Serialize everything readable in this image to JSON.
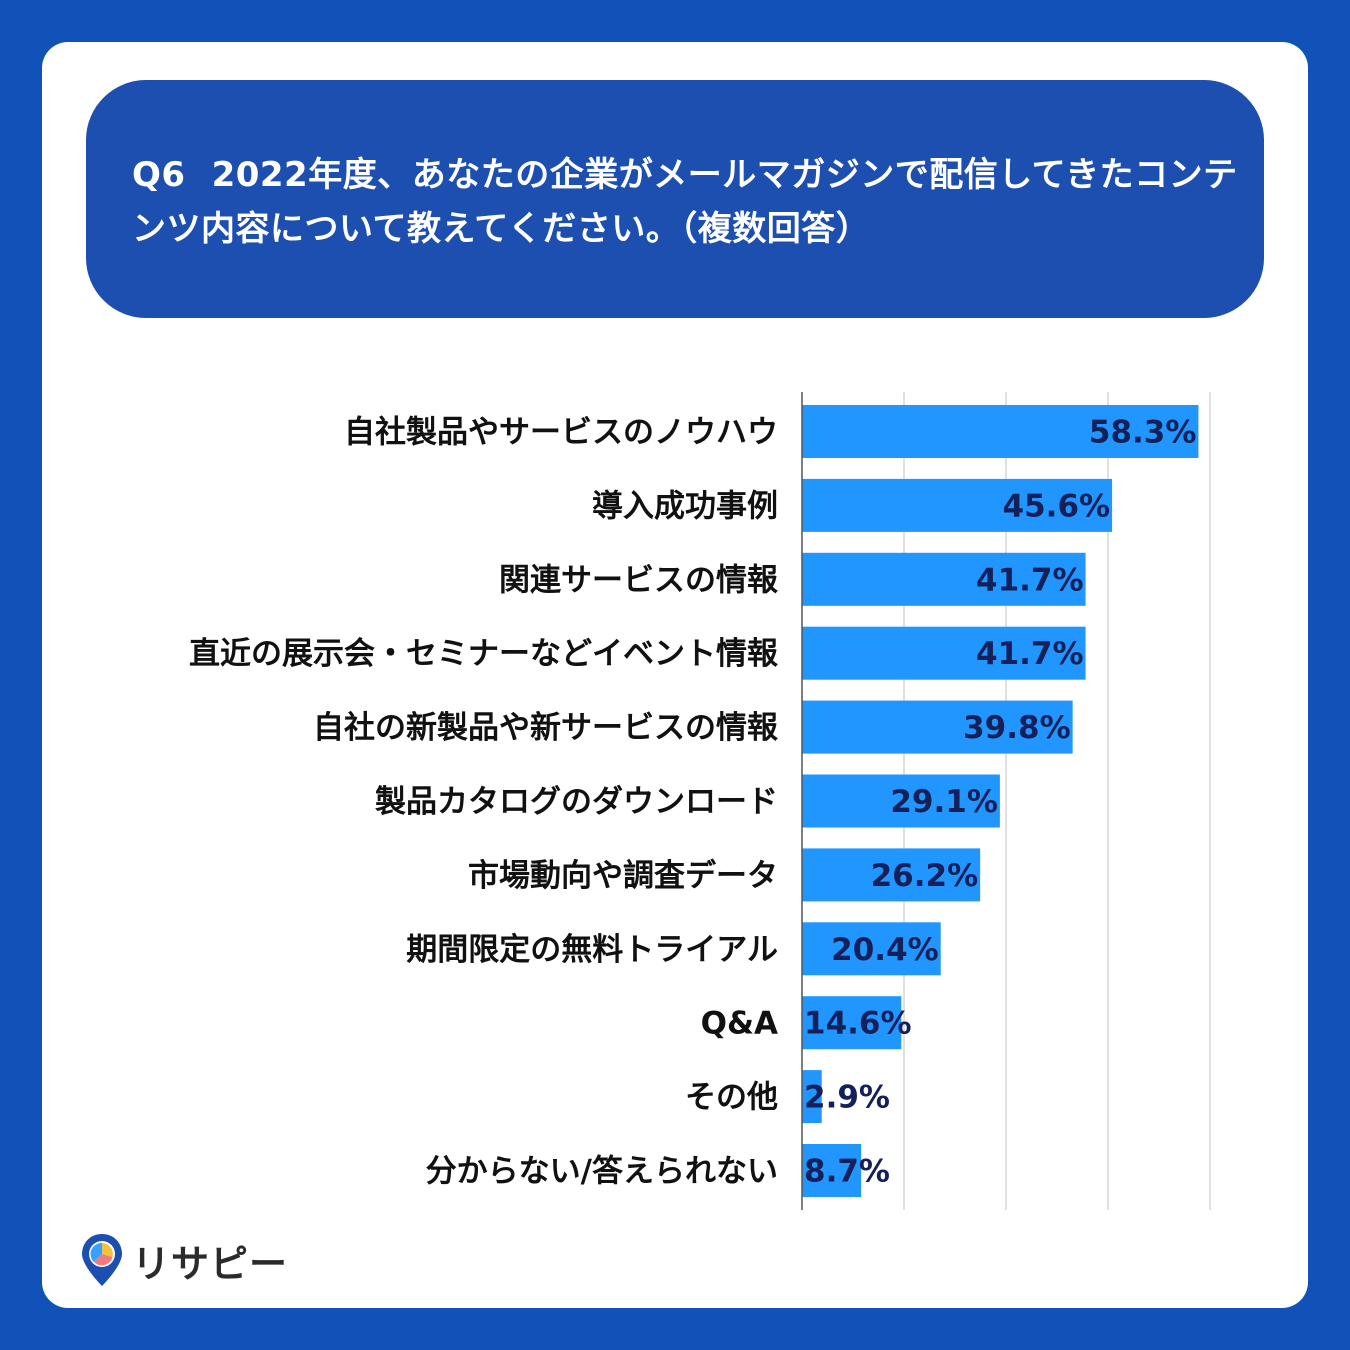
{
  "question": {
    "number": "Q6",
    "text": "2022年度、あなたの企業がメールマガジンで配信してきたコンテンツ内容について教えてください。（複数回答）"
  },
  "brand": {
    "name": "リサピー",
    "logo_icon": "map-pin-pie-icon"
  },
  "colors": {
    "background": "#1152b8",
    "banner": "#1d4fb1",
    "bar": "#2196ff",
    "value_text": "#14205a"
  },
  "chart_data": {
    "type": "bar",
    "orientation": "horizontal",
    "categories": [
      "自社製品やサービスのノウハウ",
      "導入成功事例",
      "関連サービスの情報",
      "直近の展示会・セミナーなどイベント情報",
      "自社の新製品や新サービスの情報",
      "製品カタログのダウンロード",
      "市場動向や調査データ",
      "期間限定の無料トライアル",
      "Q&A",
      "その他",
      "分からない/答えられない"
    ],
    "values": [
      58.3,
      45.6,
      41.7,
      41.7,
      39.8,
      29.1,
      26.2,
      20.4,
      14.6,
      2.9,
      8.7
    ],
    "value_labels": [
      "58.3%",
      "45.6%",
      "41.7%",
      "41.7%",
      "39.8%",
      "29.1%",
      "26.2%",
      "20.4%",
      "14.6%",
      "2.9%",
      "8.7%"
    ],
    "xlim": [
      0,
      60
    ],
    "grid": true,
    "legend": false
  }
}
